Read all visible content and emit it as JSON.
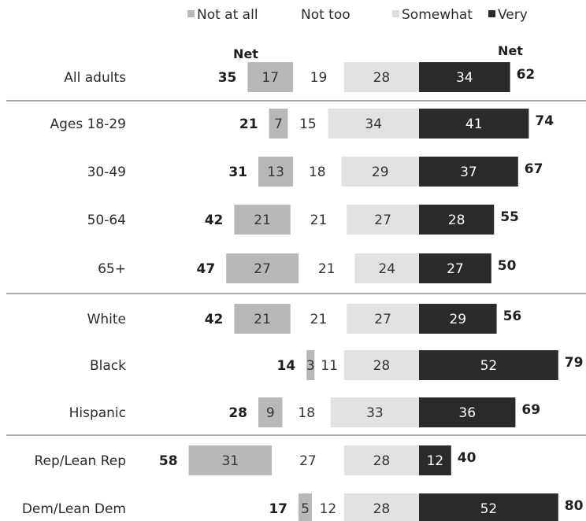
{
  "chart_data": {
    "type": "bar",
    "orientation": "horizontal",
    "stacked": "diverging",
    "legend": {
      "placement": "top",
      "entries": [
        {
          "label": "Not at all",
          "color": "#b8b8b8"
        },
        {
          "label": "Not too",
          "color": "#ffffff"
        },
        {
          "label": "Somewhat",
          "color": "#e2e2e2"
        },
        {
          "label": "Very",
          "color": "#2a2a2a"
        }
      ]
    },
    "net_header_left": "Net",
    "net_header_right": "Net",
    "categories": [
      "All adults",
      "Ages 18-29",
      "30-49",
      "50-64",
      "65+",
      "White",
      "Black",
      "Hispanic",
      "Rep/Lean Rep",
      "Dem/Lean Dem"
    ],
    "series": [
      {
        "name": "Not at all",
        "values": [
          17,
          7,
          13,
          21,
          27,
          21,
          3,
          9,
          31,
          5
        ]
      },
      {
        "name": "Not too",
        "values": [
          19,
          15,
          18,
          21,
          21,
          21,
          11,
          18,
          27,
          12
        ]
      },
      {
        "name": "Somewhat",
        "values": [
          28,
          34,
          29,
          27,
          24,
          27,
          28,
          33,
          28,
          28
        ]
      },
      {
        "name": "Very",
        "values": [
          34,
          41,
          37,
          28,
          27,
          29,
          52,
          36,
          12,
          52
        ]
      }
    ],
    "net_negative": [
      35,
      21,
      31,
      42,
      47,
      42,
      14,
      28,
      58,
      17
    ],
    "net_positive": [
      62,
      74,
      67,
      55,
      50,
      56,
      79,
      69,
      40,
      80
    ],
    "group_dividers_after": [
      "All adults",
      "65+",
      "Hispanic"
    ]
  }
}
